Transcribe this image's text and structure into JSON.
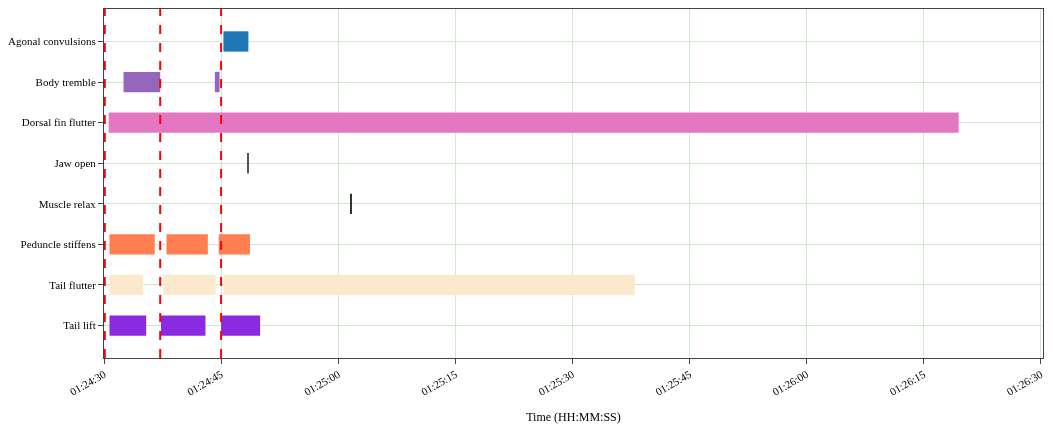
{
  "chart_data": {
    "type": "bar",
    "orientation": "horizontal",
    "xlabel": "Time (HH:MM:SS)",
    "categories": [
      "Agonal convulsions",
      "Body tremble",
      "Dorsal fin flutter",
      "Jaw open",
      "Muscle relax",
      "Peduncle stiffens",
      "Tail flutter",
      "Tail lift"
    ],
    "series": [
      {
        "colors": [
          "#1f77b4",
          "#9467bd",
          "#e377c2",
          "#555555",
          "#333333",
          "#ff7f50",
          "#fce9cc",
          "#8a2be2"
        ],
        "base": [
          1.412583,
          1.409028,
          1.4085,
          1.413444,
          1.417111,
          1.408528,
          1.408528,
          1.408528
        ],
        "values": [
          0.000889,
          0.001306,
          0.03025,
          2.8e-05,
          2.8e-05,
          0.001611,
          0.001194,
          0.001306
        ]
      },
      {
        "colors": [
          null,
          "#9467bd",
          null,
          null,
          null,
          "#ff7f50",
          "#fce9cc",
          "#8a2be2"
        ],
        "base": [
          null,
          1.412278,
          null,
          null,
          null,
          1.410556,
          1.410444,
          1.410361
        ],
        "values": [
          null,
          0.000167,
          null,
          null,
          null,
          0.001472,
          0.001861,
          0.001583
        ]
      },
      {
        "colors": [
          null,
          null,
          null,
          null,
          null,
          "#ff7f50",
          "#fce9cc",
          "#8a2be2"
        ],
        "base": [
          null,
          null,
          null,
          null,
          null,
          1.412417,
          1.412583,
          1.4125
        ],
        "values": [
          null,
          null,
          null,
          null,
          null,
          0.001111,
          0.014639,
          0.001389
        ]
      }
    ],
    "xlim": [
      1.408333,
      1.44175
    ],
    "xticks": [
      {
        "value": 1.408333,
        "label": "01:24:30"
      },
      {
        "value": 1.4125,
        "label": "01:24:45"
      },
      {
        "value": 1.416667,
        "label": "01:25:00"
      },
      {
        "value": 1.420833,
        "label": "01:25:15"
      },
      {
        "value": 1.425,
        "label": "01:25:30"
      },
      {
        "value": 1.429167,
        "label": "01:25:45"
      },
      {
        "value": 1.433333,
        "label": "01:26:00"
      },
      {
        "value": 1.4375,
        "label": "01:26:15"
      },
      {
        "value": 1.441667,
        "label": "01:26:30"
      }
    ],
    "ref_lines": [
      {
        "axis": "x",
        "value": 1.408361,
        "color": "#ff0000",
        "line_style": "dashed"
      },
      {
        "axis": "x",
        "value": 1.410333,
        "color": "#ff0000",
        "line_style": "dashed"
      },
      {
        "axis": "x",
        "value": 1.4125,
        "color": "#ff0000",
        "line_style": "dashed"
      }
    ],
    "grid": true
  }
}
